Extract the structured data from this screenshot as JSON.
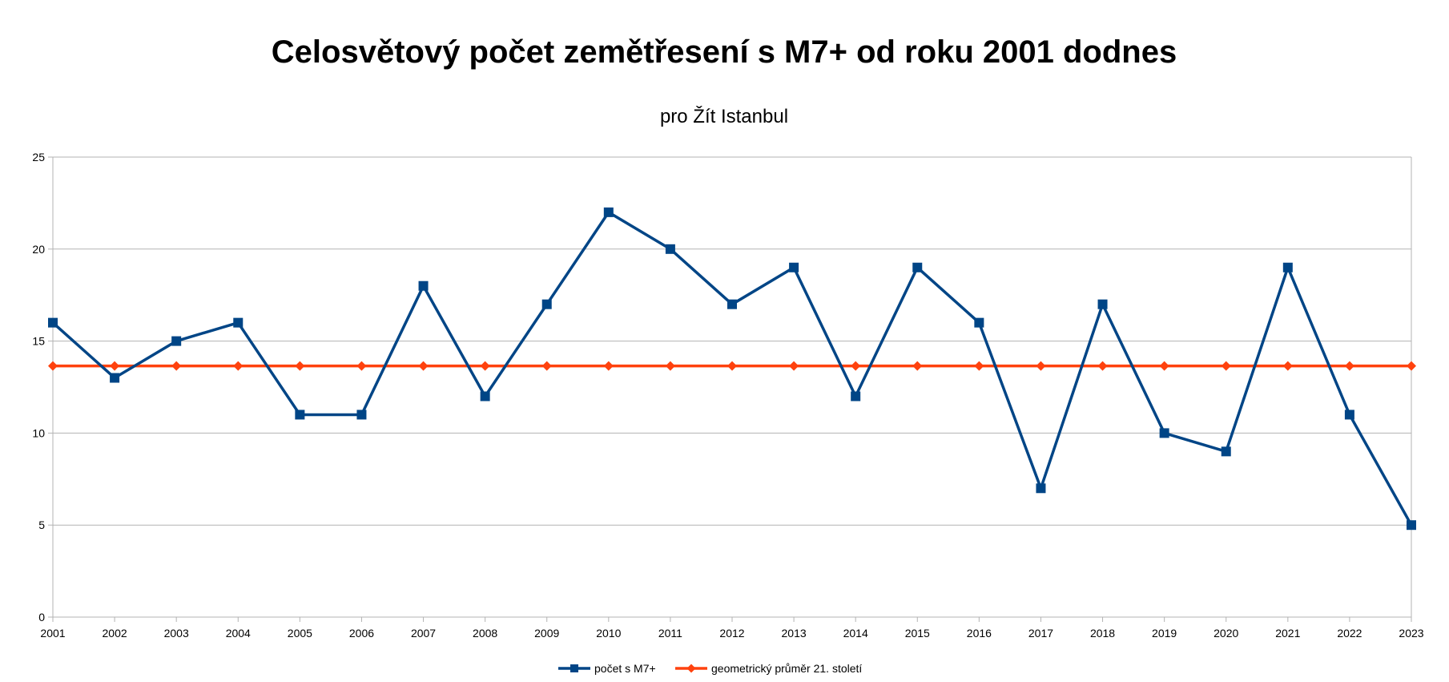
{
  "chart_data": {
    "type": "line",
    "title": "Celosvětový počet zemětřesení s M7+ od roku 2001 dodnes",
    "subtitle": "pro Žít Istanbul",
    "xlabel": "",
    "ylabel": "",
    "categories": [
      "2001",
      "2002",
      "2003",
      "2004",
      "2005",
      "2006",
      "2007",
      "2008",
      "2009",
      "2010",
      "2011",
      "2012",
      "2013",
      "2014",
      "2015",
      "2016",
      "2017",
      "2018",
      "2019",
      "2020",
      "2021",
      "2022",
      "2023"
    ],
    "ylim": [
      0,
      25
    ],
    "yticks": [
      0,
      5,
      10,
      15,
      20,
      25
    ],
    "grid": true,
    "legend_position": "bottom",
    "series": [
      {
        "name": "počet s M7+",
        "color": "#004586",
        "marker": "square",
        "values": [
          16,
          13,
          15,
          16,
          11,
          11,
          18,
          12,
          17,
          22,
          20,
          17,
          19,
          12,
          19,
          16,
          7,
          17,
          10,
          9,
          19,
          11,
          5
        ]
      },
      {
        "name": "geometrický průměr 21. století",
        "color": "#ff420e",
        "marker": "diamond",
        "values": [
          13.65,
          13.65,
          13.65,
          13.65,
          13.65,
          13.65,
          13.65,
          13.65,
          13.65,
          13.65,
          13.65,
          13.65,
          13.65,
          13.65,
          13.65,
          13.65,
          13.65,
          13.65,
          13.65,
          13.65,
          13.65,
          13.65,
          13.65
        ]
      }
    ]
  }
}
